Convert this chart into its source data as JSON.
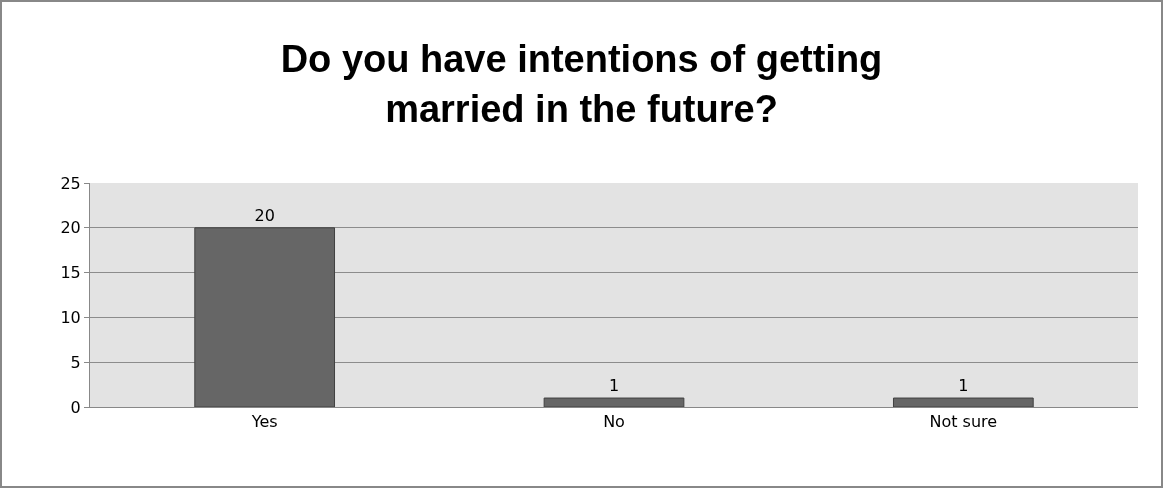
{
  "chart_data": {
    "type": "bar",
    "title": "Do you have intentions of getting married in the future?",
    "categories": [
      "Yes",
      "No",
      "Not sure"
    ],
    "values": [
      20,
      1,
      1
    ],
    "color": "#666666",
    "ylim": [
      0,
      25
    ],
    "yticks": [
      0,
      5,
      10,
      15,
      20,
      25
    ],
    "grid": "y",
    "data_labels": true,
    "legend": false
  }
}
